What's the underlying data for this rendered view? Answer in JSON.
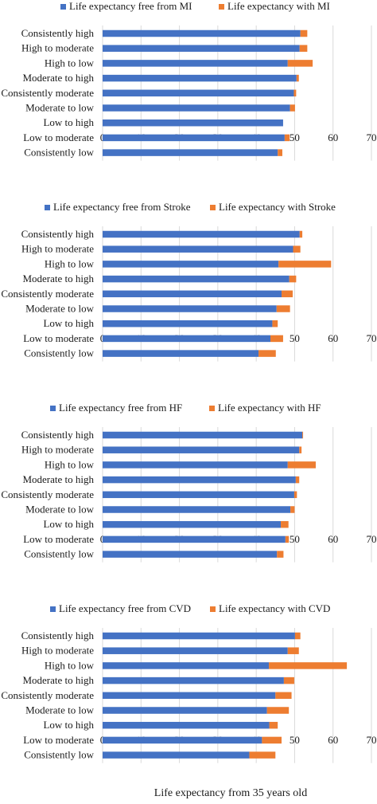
{
  "colors": {
    "free": "#4472C4",
    "with": "#ED7D31",
    "grid": "#d9d9d9"
  },
  "xlabel": "Life expectancy from 35 years old",
  "chart_data": [
    {
      "type": "bar",
      "stacked": true,
      "orientation": "horizontal",
      "categories": [
        "Consistently high",
        "High to moderate",
        "High to low",
        "Moderate to high",
        "Consistently moderate",
        "Moderate to low",
        "Low to high",
        "Low to moderate",
        "Consistently low"
      ],
      "series": [
        {
          "name": "Life expectancy free from MI",
          "values": [
            51.5,
            51.3,
            48.2,
            50.5,
            49.8,
            48.8,
            47.0,
            47.4,
            45.6
          ]
        },
        {
          "name": "Life expectancy with MI",
          "values": [
            1.8,
            2.0,
            6.5,
            0.6,
            0.6,
            1.3,
            0.0,
            1.3,
            1.2
          ]
        }
      ],
      "xlim": [
        0,
        70
      ],
      "xticks": [
        0,
        10,
        20,
        30,
        40,
        50,
        60,
        70
      ],
      "grid": "vertical",
      "legend": "top"
    },
    {
      "type": "bar",
      "stacked": true,
      "orientation": "horizontal",
      "categories": [
        "Consistently high",
        "High to moderate",
        "High to low",
        "Moderate to high",
        "Consistently moderate",
        "Moderate to low",
        "Low to high",
        "Low to moderate",
        "Consistently low"
      ],
      "series": [
        {
          "name": "Life expectancy free from Stroke",
          "values": [
            51.3,
            49.6,
            45.8,
            48.6,
            46.6,
            45.3,
            44.2,
            43.7,
            40.6
          ]
        },
        {
          "name": "Life expectancy with Stroke",
          "values": [
            0.7,
            1.9,
            13.7,
            1.8,
            2.9,
            3.5,
            1.4,
            3.3,
            4.5
          ]
        }
      ],
      "xlim": [
        0,
        70
      ],
      "xticks": [
        0,
        10,
        20,
        30,
        40,
        50,
        60,
        70
      ],
      "grid": "vertical",
      "legend": "top"
    },
    {
      "type": "bar",
      "stacked": true,
      "orientation": "horizontal",
      "categories": [
        "Consistently high",
        "High to moderate",
        "High to low",
        "Moderate to high",
        "Consistently moderate",
        "Moderate to low",
        "Low to high",
        "Low to moderate",
        "Consistently low"
      ],
      "series": [
        {
          "name": "Life expectancy free from HF",
          "values": [
            52.0,
            51.2,
            48.2,
            50.3,
            49.9,
            48.9,
            46.4,
            47.6,
            45.4
          ]
        },
        {
          "name": "Life expectancy with HF",
          "values": [
            0.2,
            0.6,
            7.3,
            0.9,
            0.7,
            1.1,
            2.0,
            0.9,
            1.7
          ]
        }
      ],
      "xlim": [
        0,
        70
      ],
      "xticks": [
        0,
        10,
        20,
        30,
        40,
        50,
        60,
        70
      ],
      "grid": "vertical",
      "legend": "top"
    },
    {
      "type": "bar",
      "stacked": true,
      "orientation": "horizontal",
      "categories": [
        "Consistently high",
        "High to moderate",
        "High to low",
        "Moderate to high",
        "Consistently moderate",
        "Moderate to low",
        "Low to high",
        "Low to moderate",
        "Consistently low"
      ],
      "series": [
        {
          "name": "Life expectancy free from CVD",
          "values": [
            50.1,
            48.2,
            43.3,
            47.2,
            45.0,
            42.8,
            43.4,
            41.5,
            38.2
          ]
        },
        {
          "name": "Life expectancy with CVD",
          "values": [
            1.4,
            2.9,
            20.3,
            2.7,
            4.2,
            5.7,
            2.2,
            5.1,
            6.8
          ]
        }
      ],
      "xlim": [
        0,
        70
      ],
      "xticks": [
        0,
        10,
        20,
        30,
        40,
        50,
        60,
        70
      ],
      "grid": "vertical",
      "legend": "top"
    }
  ]
}
